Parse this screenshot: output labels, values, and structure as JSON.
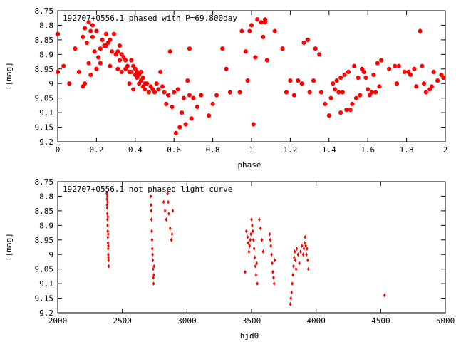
{
  "chart_data": [
    {
      "type": "scatter",
      "title": "192707+0556.1 phased with P=69.800day",
      "xlabel": "phase",
      "ylabel": "I[mag]",
      "xlim": [
        0,
        2
      ],
      "ylim": [
        8.75,
        9.2
      ],
      "y_inverted": true,
      "x_ticks": [
        "0",
        "0.2",
        "0.4",
        "0.6",
        "0.8",
        "1",
        "1.2",
        "1.4",
        "1.6",
        "1.8",
        "2"
      ],
      "y_ticks": [
        "8.75",
        "8.8",
        "8.85",
        "8.9",
        "8.95",
        "9",
        "9.05",
        "9.1",
        "9.15",
        "9.2"
      ],
      "color": "#ff0000",
      "marker": "star",
      "points": [
        [
          0.0,
          8.83
        ],
        [
          0.0,
          8.96
        ],
        [
          0.03,
          8.94
        ],
        [
          0.06,
          9.0
        ],
        [
          0.09,
          8.88
        ],
        [
          0.11,
          8.96
        ],
        [
          0.13,
          8.84
        ],
        [
          0.13,
          9.01
        ],
        [
          0.14,
          9.0
        ],
        [
          0.14,
          8.81
        ],
        [
          0.15,
          8.86
        ],
        [
          0.16,
          8.79
        ],
        [
          0.16,
          8.93
        ],
        [
          0.17,
          8.82
        ],
        [
          0.17,
          8.97
        ],
        [
          0.18,
          8.8
        ],
        [
          0.18,
          8.84
        ],
        [
          0.19,
          8.89
        ],
        [
          0.2,
          8.82
        ],
        [
          0.2,
          8.95
        ],
        [
          0.21,
          8.91
        ],
        [
          0.22,
          8.88
        ],
        [
          0.22,
          8.93
        ],
        [
          0.23,
          8.85
        ],
        [
          0.24,
          8.87
        ],
        [
          0.25,
          8.87
        ],
        [
          0.25,
          8.83
        ],
        [
          0.26,
          8.86
        ],
        [
          0.27,
          8.85
        ],
        [
          0.27,
          8.94
        ],
        [
          0.28,
          8.89
        ],
        [
          0.29,
          8.83
        ],
        [
          0.3,
          8.9
        ],
        [
          0.31,
          8.89
        ],
        [
          0.31,
          8.95
        ],
        [
          0.32,
          8.87
        ],
        [
          0.32,
          8.92
        ],
        [
          0.33,
          8.9
        ],
        [
          0.33,
          8.96
        ],
        [
          0.34,
          8.91
        ],
        [
          0.35,
          8.95
        ],
        [
          0.35,
          8.92
        ],
        [
          0.36,
          8.94
        ],
        [
          0.37,
          8.96
        ],
        [
          0.37,
          9.0
        ],
        [
          0.38,
          8.92
        ],
        [
          0.38,
          8.96
        ],
        [
          0.39,
          8.94
        ],
        [
          0.39,
          9.02
        ],
        [
          0.4,
          8.97
        ],
        [
          0.4,
          8.95
        ],
        [
          0.41,
          8.96
        ],
        [
          0.41,
          8.98
        ],
        [
          0.42,
          8.97
        ],
        [
          0.42,
          9.0
        ],
        [
          0.43,
          8.99
        ],
        [
          0.43,
          8.96
        ],
        [
          0.44,
          9.01
        ],
        [
          0.44,
          8.98
        ],
        [
          0.45,
          9.02
        ],
        [
          0.45,
          9.0
        ],
        [
          0.46,
          9.0
        ],
        [
          0.47,
          9.03
        ],
        [
          0.48,
          9.01
        ],
        [
          0.49,
          9.02
        ],
        [
          0.5,
          9.03
        ],
        [
          0.51,
          9.0
        ],
        [
          0.52,
          9.02
        ],
        [
          0.53,
          8.96
        ],
        [
          0.54,
          9.01
        ],
        [
          0.55,
          9.03
        ],
        [
          0.56,
          9.07
        ],
        [
          0.57,
          9.04
        ],
        [
          0.58,
          8.89
        ],
        [
          0.59,
          9.08
        ],
        [
          0.6,
          9.03
        ],
        [
          0.61,
          9.17
        ],
        [
          0.62,
          9.02
        ],
        [
          0.63,
          9.15
        ],
        [
          0.64,
          9.1
        ],
        [
          0.65,
          9.05
        ],
        [
          0.66,
          9.14
        ],
        [
          0.67,
          8.99
        ],
        [
          0.68,
          9.04
        ],
        [
          0.68,
          8.88
        ],
        [
          0.69,
          9.12
        ],
        [
          0.7,
          9.05
        ],
        [
          0.72,
          9.08
        ],
        [
          0.74,
          9.04
        ],
        [
          0.78,
          9.11
        ],
        [
          0.8,
          9.07
        ],
        [
          0.82,
          9.04
        ],
        [
          0.85,
          8.88
        ],
        [
          0.87,
          8.95
        ],
        [
          0.89,
          9.03
        ],
        [
          0.94,
          9.03
        ],
        [
          0.95,
          8.82
        ],
        [
          0.97,
          8.89
        ],
        [
          0.98,
          8.99
        ],
        [
          0.99,
          8.82
        ],
        [
          1.0,
          8.8
        ],
        [
          1.01,
          9.14
        ],
        [
          1.02,
          8.91
        ],
        [
          1.03,
          8.78
        ],
        [
          1.05,
          8.79
        ],
        [
          1.06,
          8.84
        ],
        [
          1.07,
          8.79
        ],
        [
          1.07,
          8.78
        ],
        [
          1.08,
          8.92
        ],
        [
          1.12,
          8.82
        ],
        [
          1.16,
          8.88
        ],
        [
          1.18,
          9.03
        ],
        [
          1.2,
          8.99
        ],
        [
          1.22,
          9.04
        ],
        [
          1.24,
          8.99
        ],
        [
          1.26,
          9.0
        ],
        [
          1.27,
          8.86
        ],
        [
          1.29,
          8.85
        ],
        [
          1.3,
          9.03
        ],
        [
          1.32,
          8.99
        ],
        [
          1.33,
          8.88
        ],
        [
          1.35,
          8.9
        ],
        [
          1.36,
          9.03
        ],
        [
          1.38,
          9.07
        ],
        [
          1.4,
          9.11
        ],
        [
          1.41,
          9.05
        ],
        [
          1.42,
          9.0
        ],
        [
          1.43,
          9.02
        ],
        [
          1.44,
          8.99
        ],
        [
          1.45,
          9.03
        ],
        [
          1.46,
          9.1
        ],
        [
          1.46,
          8.98
        ],
        [
          1.47,
          9.03
        ],
        [
          1.48,
          8.97
        ],
        [
          1.49,
          9.09
        ],
        [
          1.5,
          8.96
        ],
        [
          1.51,
          9.09
        ],
        [
          1.52,
          9.07
        ],
        [
          1.53,
          8.94
        ],
        [
          1.54,
          9.05
        ],
        [
          1.55,
          8.98
        ],
        [
          1.56,
          9.04
        ],
        [
          1.57,
          8.95
        ],
        [
          1.58,
          8.96
        ],
        [
          1.59,
          8.98
        ],
        [
          1.6,
          9.02
        ],
        [
          1.61,
          9.04
        ],
        [
          1.62,
          9.03
        ],
        [
          1.63,
          8.97
        ],
        [
          1.64,
          9.03
        ],
        [
          1.65,
          8.93
        ],
        [
          1.66,
          9.01
        ],
        [
          1.67,
          8.92
        ],
        [
          1.71,
          8.95
        ],
        [
          1.74,
          8.94
        ],
        [
          1.75,
          9.0
        ],
        [
          1.76,
          8.94
        ],
        [
          1.79,
          8.96
        ],
        [
          1.81,
          8.96
        ],
        [
          1.82,
          8.97
        ],
        [
          1.84,
          8.95
        ],
        [
          1.85,
          9.01
        ],
        [
          1.87,
          8.82
        ],
        [
          1.88,
          8.94
        ],
        [
          1.89,
          9.0
        ],
        [
          1.9,
          9.03
        ],
        [
          1.92,
          9.02
        ],
        [
          1.93,
          9.01
        ],
        [
          1.94,
          8.96
        ],
        [
          1.96,
          8.99
        ],
        [
          1.98,
          8.97
        ],
        [
          1.99,
          8.98
        ]
      ]
    },
    {
      "type": "scatter",
      "title": "192707+0556.1 not phased light curve",
      "xlabel": "hjd0",
      "ylabel": "I[mag]",
      "xlim": [
        2000,
        5000
      ],
      "ylim": [
        8.75,
        9.2
      ],
      "y_inverted": true,
      "x_ticks": [
        "2000",
        "2500",
        "3000",
        "3500",
        "4000",
        "4500",
        "5000"
      ],
      "y_ticks": [
        "8.75",
        "8.8",
        "8.85",
        "8.9",
        "8.95",
        "9",
        "9.05",
        "9.1",
        "9.15",
        "9.2"
      ],
      "color": "#ff0000",
      "marker": "diamond",
      "points": [
        [
          2380,
          8.79
        ],
        [
          2381,
          8.81
        ],
        [
          2382,
          8.83
        ],
        [
          2383,
          8.84
        ],
        [
          2384,
          8.86
        ],
        [
          2385,
          8.88
        ],
        [
          2386,
          8.9
        ],
        [
          2387,
          8.92
        ],
        [
          2388,
          8.94
        ],
        [
          2389,
          8.96
        ],
        [
          2390,
          8.98
        ],
        [
          2391,
          9.0
        ],
        [
          2392,
          9.01
        ],
        [
          2393,
          9.02
        ],
        [
          2395,
          9.04
        ],
        [
          2384,
          8.8
        ],
        [
          2386,
          8.82
        ],
        [
          2388,
          8.87
        ],
        [
          2390,
          8.93
        ],
        [
          2392,
          8.97
        ],
        [
          2720,
          8.8
        ],
        [
          2722,
          8.83
        ],
        [
          2724,
          8.85
        ],
        [
          2726,
          8.88
        ],
        [
          2728,
          8.92
        ],
        [
          2730,
          8.95
        ],
        [
          2732,
          8.98
        ],
        [
          2734,
          9.0
        ],
        [
          2736,
          9.02
        ],
        [
          2738,
          9.05
        ],
        [
          2740,
          9.08
        ],
        [
          2742,
          9.1
        ],
        [
          2744,
          9.07
        ],
        [
          2746,
          9.04
        ],
        [
          2820,
          8.82
        ],
        [
          2830,
          8.85
        ],
        [
          2840,
          8.88
        ],
        [
          2850,
          8.79
        ],
        [
          2855,
          8.82
        ],
        [
          2860,
          8.86
        ],
        [
          2870,
          8.91
        ],
        [
          2880,
          8.95
        ],
        [
          2885,
          8.93
        ],
        [
          2890,
          8.85
        ],
        [
          3450,
          9.06
        ],
        [
          3460,
          8.92
        ],
        [
          3470,
          8.94
        ],
        [
          3475,
          8.96
        ],
        [
          3480,
          8.99
        ],
        [
          3485,
          8.97
        ],
        [
          3490,
          8.95
        ],
        [
          3495,
          8.93
        ],
        [
          3500,
          8.88
        ],
        [
          3505,
          8.9
        ],
        [
          3510,
          8.92
        ],
        [
          3515,
          8.95
        ],
        [
          3520,
          8.98
        ],
        [
          3525,
          9.01
        ],
        [
          3530,
          9.04
        ],
        [
          3535,
          9.07
        ],
        [
          3540,
          9.03
        ],
        [
          3545,
          9.1
        ],
        [
          3560,
          8.88
        ],
        [
          3570,
          8.91
        ],
        [
          3580,
          8.95
        ],
        [
          3590,
          8.99
        ],
        [
          3640,
          8.93
        ],
        [
          3645,
          8.95
        ],
        [
          3650,
          8.97
        ],
        [
          3655,
          9.0
        ],
        [
          3660,
          9.03
        ],
        [
          3665,
          9.06
        ],
        [
          3670,
          9.08
        ],
        [
          3675,
          9.1
        ],
        [
          3680,
          9.02
        ],
        [
          3800,
          9.17
        ],
        [
          3805,
          9.15
        ],
        [
          3810,
          9.13
        ],
        [
          3815,
          9.1
        ],
        [
          3820,
          9.07
        ],
        [
          3825,
          9.04
        ],
        [
          3830,
          9.01
        ],
        [
          3835,
          8.99
        ],
        [
          3840,
          9.02
        ],
        [
          3845,
          9.05
        ],
        [
          3850,
          8.98
        ],
        [
          3860,
          9.0
        ],
        [
          3870,
          9.03
        ],
        [
          3880,
          8.99
        ],
        [
          3890,
          8.97
        ],
        [
          3900,
          9.0
        ],
        [
          3905,
          8.98
        ],
        [
          3910,
          8.96
        ],
        [
          3915,
          8.94
        ],
        [
          3920,
          8.97
        ],
        [
          3925,
          9.0
        ],
        [
          3930,
          8.98
        ],
        [
          3935,
          9.02
        ],
        [
          3940,
          9.05
        ],
        [
          4530,
          9.14
        ]
      ]
    }
  ]
}
